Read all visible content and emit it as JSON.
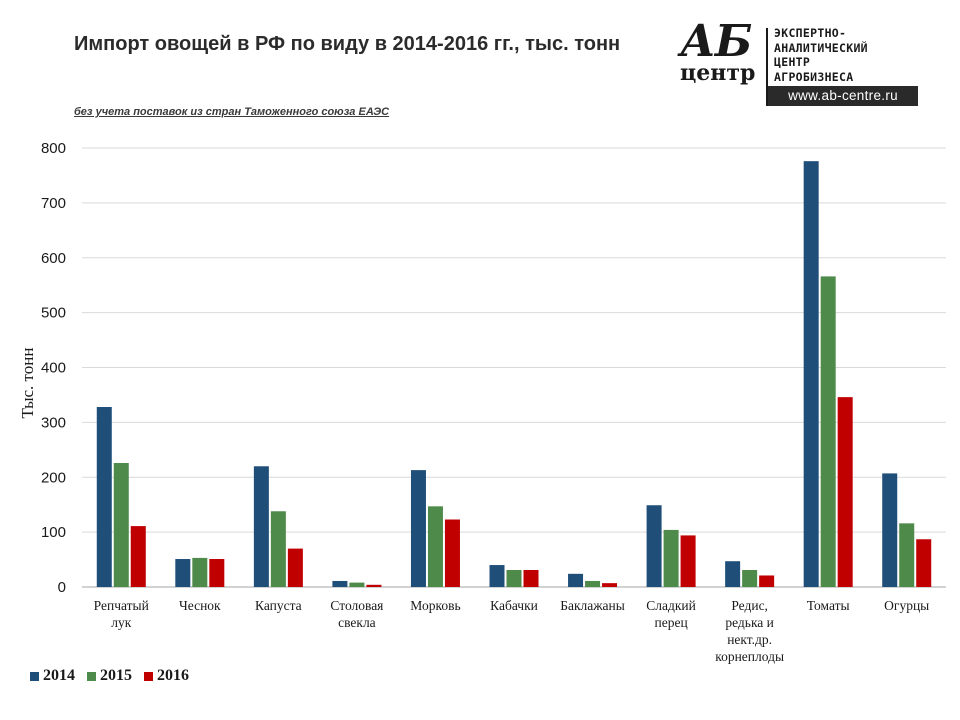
{
  "header": {
    "title": "Импорт овощей в РФ по виду в 2014-2016 гг., тыс. тонн",
    "subtitle": "без учета поставок из стран Таможенного союза ЕАЭС"
  },
  "logo": {
    "mark_top": "АБ",
    "mark_bottom": "центр",
    "lines": [
      "ЭКСПЕРТНО-",
      "АНАЛИТИЧЕСКИЙ",
      "ЦЕНТР",
      "АГРОБИЗНЕСА"
    ],
    "website": "www.ab-centre.ru"
  },
  "chart_data": {
    "type": "bar",
    "title": "Импорт овощей в РФ по виду в 2014-2016 гг., тыс. тонн",
    "xlabel": "",
    "ylabel": "Тыс. тонн",
    "ylim": [
      0,
      800
    ],
    "yticks": [
      0,
      100,
      200,
      300,
      400,
      500,
      600,
      700,
      800
    ],
    "grid": true,
    "legend_position": "bottom-left",
    "categories": [
      [
        "Репчатый",
        "лук"
      ],
      [
        "Чеснок"
      ],
      [
        "Капуста"
      ],
      [
        "Столовая",
        "свекла"
      ],
      [
        "Морковь"
      ],
      [
        "Кабачки"
      ],
      [
        "Баклажаны"
      ],
      [
        "Сладкий",
        "перец"
      ],
      [
        "Редис,",
        "редька и",
        "нект.др.",
        "корнеплоды"
      ],
      [
        "Томаты"
      ],
      [
        "Огурцы"
      ]
    ],
    "series": [
      {
        "name": "2014",
        "color": "#1f4e79",
        "values": [
          328,
          51,
          220,
          11,
          213,
          40,
          24,
          149,
          47,
          776,
          207
        ]
      },
      {
        "name": "2015",
        "color": "#4e8a4a",
        "values": [
          226,
          53,
          138,
          8,
          147,
          31,
          11,
          104,
          31,
          566,
          116
        ]
      },
      {
        "name": "2016",
        "color": "#c00000",
        "values": [
          111,
          51,
          70,
          4,
          123,
          31,
          7,
          94,
          21,
          346,
          87
        ]
      }
    ]
  }
}
